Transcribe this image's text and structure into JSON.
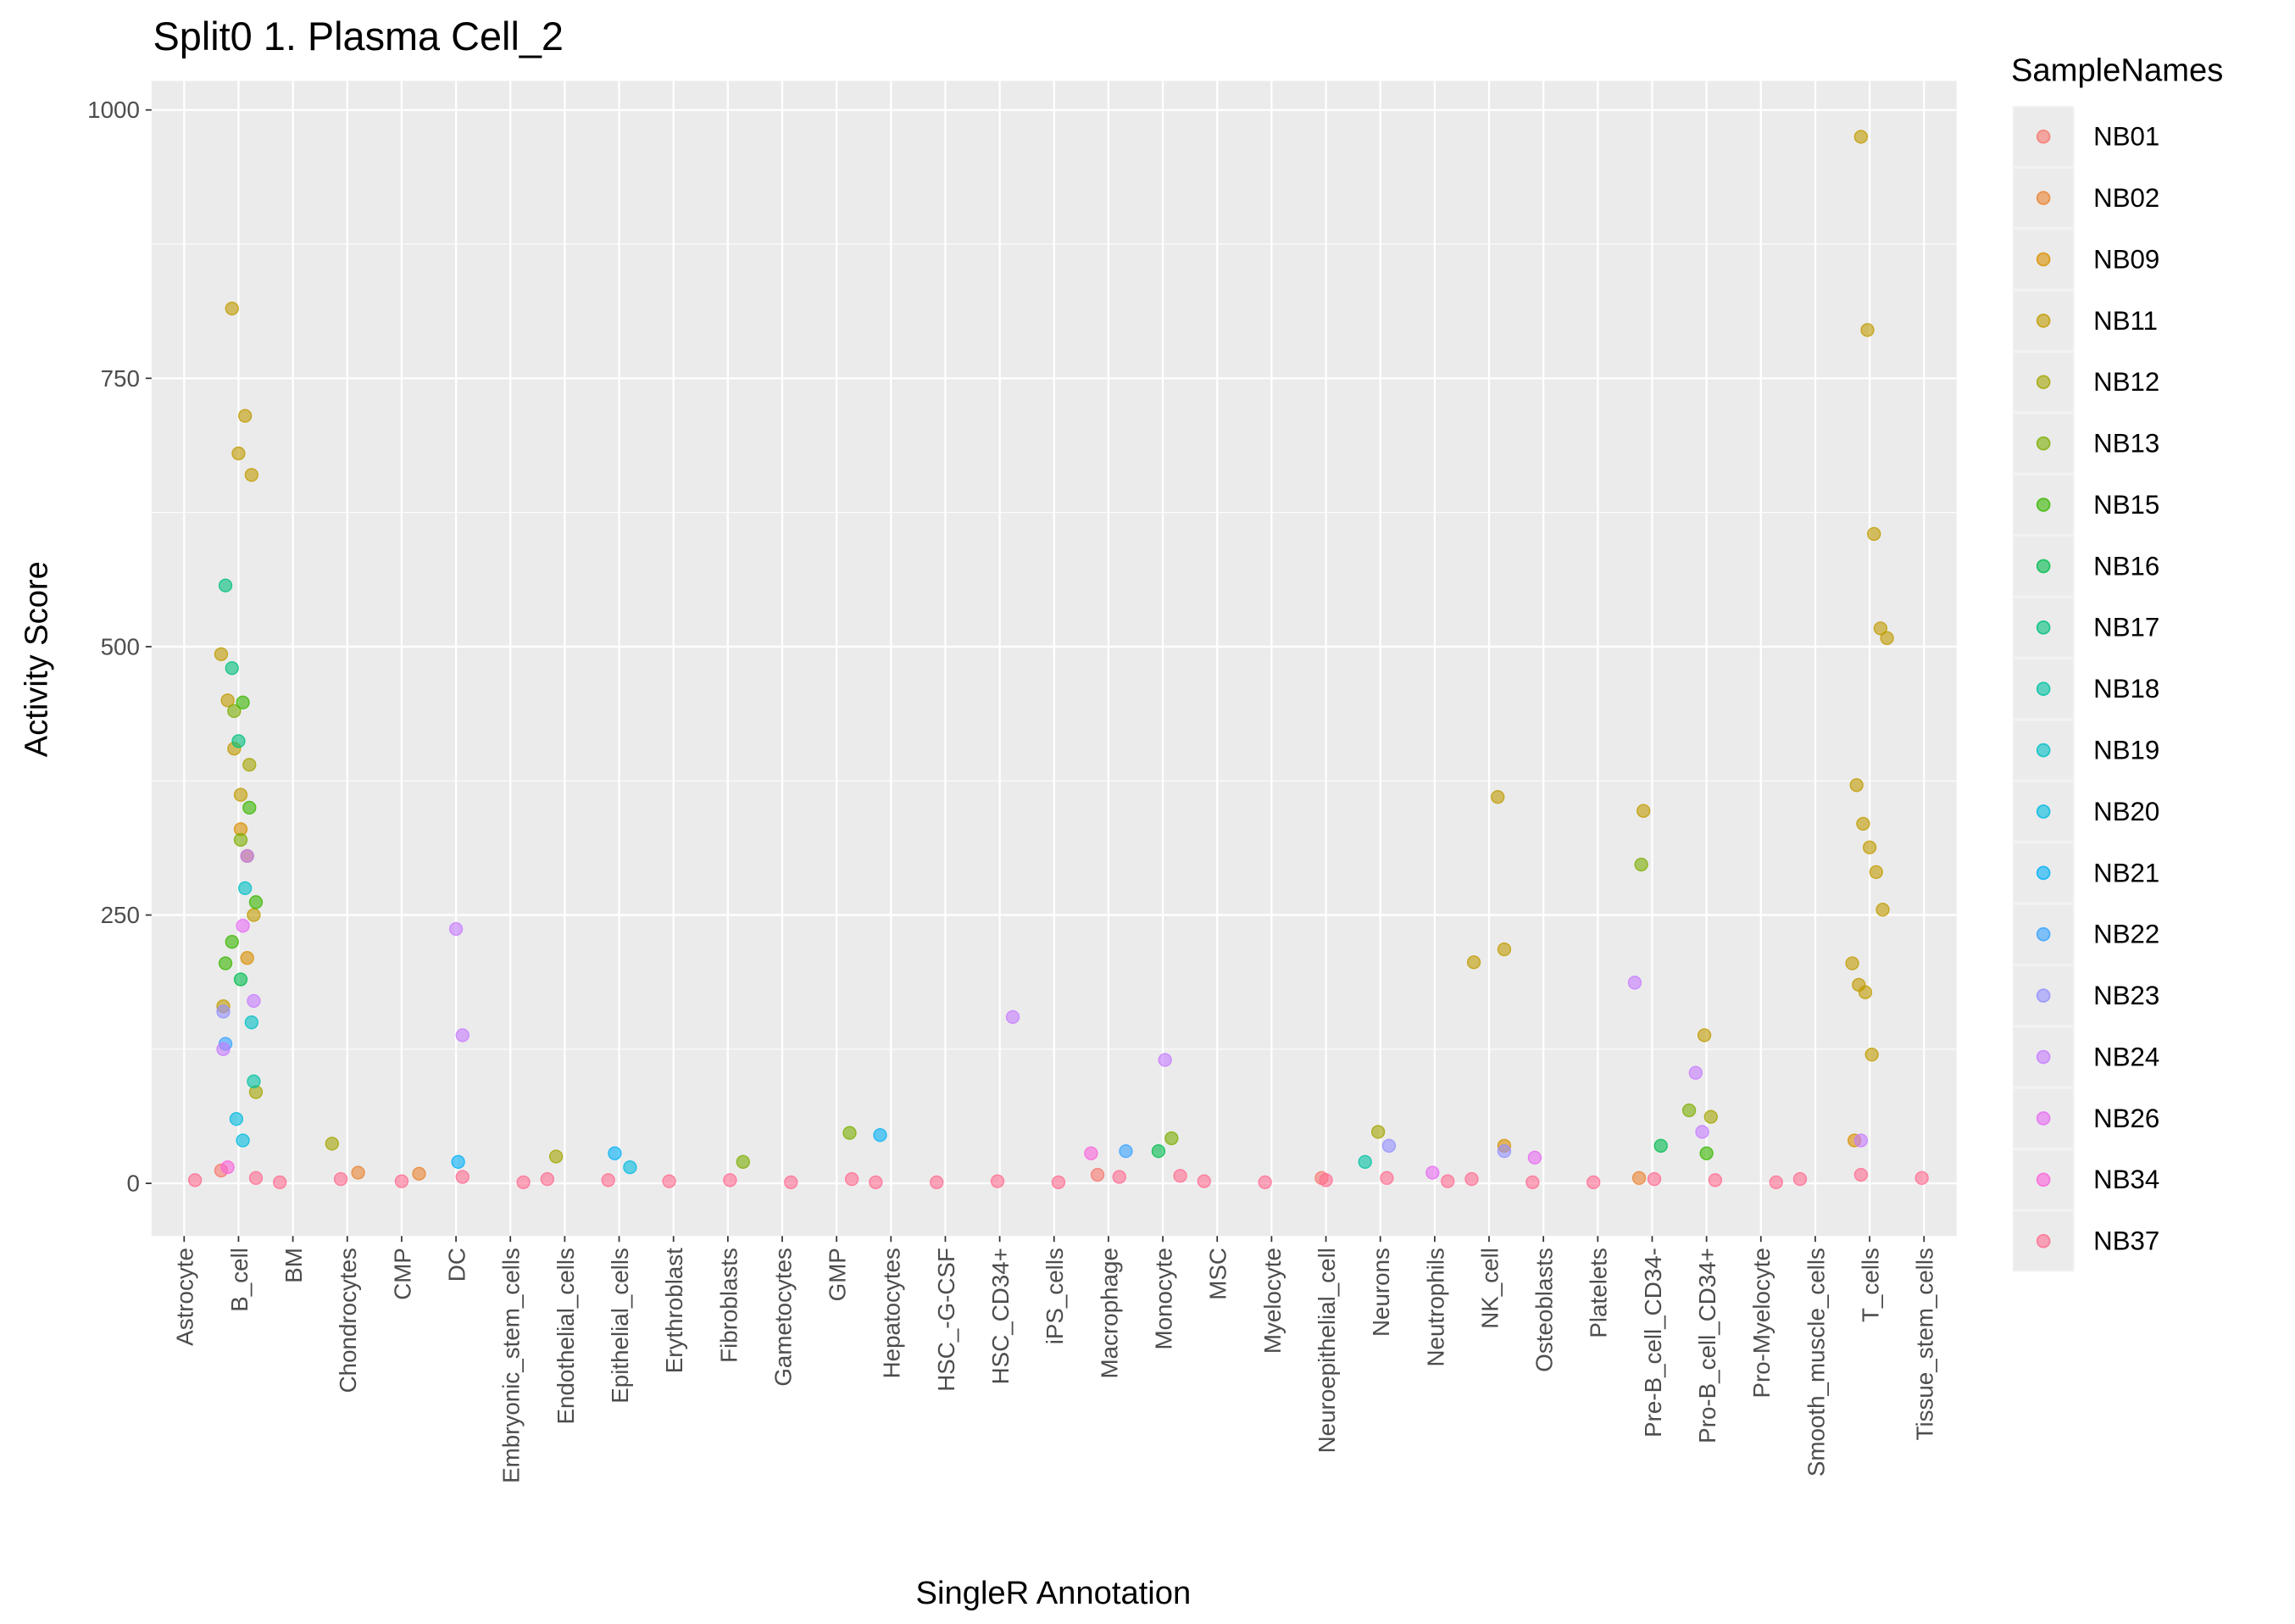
{
  "chart_data": {
    "type": "scatter",
    "title": "Split0 1. Plasma Cell_2",
    "x_label": "SingleR Annotation",
    "y_label": "Activity Score",
    "legend_title": "SampleNames",
    "legend_position": "right",
    "grid": true,
    "categories": [
      "Astrocyte",
      "B_cell",
      "BM",
      "Chondrocytes",
      "CMP",
      "DC",
      "Embryonic_stem_cells",
      "Endothelial_cells",
      "Epithelial_cells",
      "Erythroblast",
      "Fibroblasts",
      "Gametocytes",
      "GMP",
      "Hepatocytes",
      "HSC_-G-CSF",
      "HSC_CD34+",
      "iPS_cells",
      "Macrophage",
      "Monocyte",
      "MSC",
      "Myelocyte",
      "Neuroepithelial_cell",
      "Neurons",
      "Neutrophils",
      "NK_cell",
      "Osteoblasts",
      "Platelets",
      "Pre-B_cell_CD34-",
      "Pro-B_cell_CD34+",
      "Pro-Myelocyte",
      "Smooth_muscle_cells",
      "T_cells",
      "Tissue_stem_cells"
    ],
    "ylim": [
      -49,
      1027
    ],
    "yticks": [
      0,
      250,
      500,
      750,
      1000
    ],
    "series": [
      {
        "name": "NB01",
        "color": "#F8766D",
        "x": [
          "B_cell",
          "Macrophage",
          "Neuroepithelial_cell"
        ],
        "values": [
          12,
          8,
          5
        ]
      },
      {
        "name": "NB02",
        "color": "#EA8331",
        "x": [
          "Chondrocytes",
          "CMP",
          "Pre-B_cell_CD34-"
        ],
        "values": [
          10,
          9,
          5
        ]
      },
      {
        "name": "NB09",
        "color": "#D89000",
        "x": [
          "B_cell",
          "B_cell",
          "NK_cell",
          "T_cells"
        ],
        "values": [
          330,
          210,
          35,
          40
        ]
      },
      {
        "name": "NB11",
        "color": "#C09B00",
        "x": [
          "B_cell",
          "B_cell",
          "B_cell",
          "B_cell",
          "B_cell",
          "B_cell",
          "B_cell",
          "B_cell",
          "B_cell",
          "B_cell",
          "B_cell",
          "T_cells",
          "T_cells",
          "T_cells",
          "T_cells",
          "T_cells",
          "T_cells",
          "T_cells",
          "T_cells",
          "T_cells",
          "T_cells",
          "T_cells",
          "T_cells",
          "T_cells",
          "T_cells",
          "NK_cell",
          "NK_cell",
          "NK_cell",
          "Pre-B_cell_CD34-",
          "Pro-B_cell_CD34+"
        ],
        "values": [
          815,
          680,
          715,
          660,
          493,
          450,
          405,
          362,
          305,
          250,
          165,
          975,
          795,
          605,
          517,
          508,
          371,
          335,
          313,
          290,
          255,
          205,
          185,
          178,
          120,
          360,
          218,
          206,
          347,
          138
        ]
      },
      {
        "name": "NB12",
        "color": "#A3A500",
        "x": [
          "Chondrocytes",
          "Endothelial_cells",
          "Neurons",
          "Pro-B_cell_CD34+",
          "B_cell",
          "B_cell"
        ],
        "values": [
          37,
          25,
          48,
          62,
          390,
          85
        ]
      },
      {
        "name": "NB13",
        "color": "#7CAE00",
        "x": [
          "GMP",
          "Pro-B_cell_CD34+",
          "Pre-B_cell_CD34-",
          "B_cell",
          "B_cell",
          "Monocyte",
          "Fibroblasts"
        ],
        "values": [
          47,
          68,
          297,
          440,
          320,
          42,
          20
        ]
      },
      {
        "name": "NB15",
        "color": "#39B600",
        "x": [
          "B_cell",
          "B_cell",
          "B_cell",
          "B_cell",
          "B_cell",
          "Pro-B_cell_CD34+"
        ],
        "values": [
          448,
          350,
          262,
          205,
          225,
          28
        ]
      },
      {
        "name": "NB16",
        "color": "#00BB4E",
        "x": [
          "Monocyte",
          "B_cell",
          "Pre-B_cell_CD34-"
        ],
        "values": [
          30,
          190,
          35
        ]
      },
      {
        "name": "NB17",
        "color": "#00BF7D",
        "x": [
          "B_cell",
          "B_cell",
          "B_cell"
        ],
        "values": [
          557,
          480,
          412
        ]
      },
      {
        "name": "NB18",
        "color": "#00C1A3",
        "x": [
          "B_cell",
          "Neurons"
        ],
        "values": [
          95,
          20
        ]
      },
      {
        "name": "NB19",
        "color": "#00BFC4",
        "x": [
          "B_cell",
          "B_cell"
        ],
        "values": [
          275,
          150
        ]
      },
      {
        "name": "NB20",
        "color": "#00BAE0",
        "x": [
          "B_cell",
          "B_cell",
          "Epithelial_cells"
        ],
        "values": [
          60,
          40,
          15
        ]
      },
      {
        "name": "NB21",
        "color": "#00B0F6",
        "x": [
          "Hepatocytes",
          "Epithelial_cells",
          "DC"
        ],
        "values": [
          45,
          28,
          20
        ]
      },
      {
        "name": "NB22",
        "color": "#35A2FF",
        "x": [
          "Macrophage",
          "B_cell"
        ],
        "values": [
          30,
          130
        ]
      },
      {
        "name": "NB23",
        "color": "#9590FF",
        "x": [
          "Neurons",
          "NK_cell",
          "B_cell"
        ],
        "values": [
          35,
          30,
          160
        ]
      },
      {
        "name": "NB24",
        "color": "#C77CFF",
        "x": [
          "DC",
          "DC",
          "HSC_CD34+",
          "Pre-B_cell_CD34-",
          "Pro-B_cell_CD34+",
          "Pro-B_cell_CD34+",
          "Monocyte",
          "B_cell",
          "B_cell",
          "B_cell",
          "T_cells"
        ],
        "values": [
          237,
          138,
          155,
          187,
          103,
          48,
          115,
          305,
          170,
          125,
          40
        ]
      },
      {
        "name": "NB26",
        "color": "#E76BF3",
        "x": [
          "Osteoblasts",
          "Neutrophils",
          "B_cell"
        ],
        "values": [
          24,
          10,
          240
        ]
      },
      {
        "name": "NB34",
        "color": "#FA62DB",
        "x": [
          "Macrophage",
          "B_cell"
        ],
        "values": [
          28,
          15
        ]
      },
      {
        "name": "NB37",
        "color": "#FF6C91",
        "x": [
          "Astrocyte",
          "B_cell",
          "BM",
          "Chondrocytes",
          "CMP",
          "DC",
          "Embryonic_stem_cells",
          "Endothelial_cells",
          "Epithelial_cells",
          "Erythroblast",
          "Fibroblasts",
          "Gametocytes",
          "GMP",
          "Hepatocytes",
          "HSC_-G-CSF",
          "HSC_CD34+",
          "iPS_cells",
          "Macrophage",
          "Monocyte",
          "MSC",
          "Myelocyte",
          "Neuroepithelial_cell",
          "Neurons",
          "Neutrophils",
          "NK_cell",
          "Osteoblasts",
          "Platelets",
          "Pre-B_cell_CD34-",
          "Pro-B_cell_CD34+",
          "Pro-Myelocyte",
          "Smooth_muscle_cells",
          "T_cells",
          "Tissue_stem_cells"
        ],
        "values": [
          3,
          5,
          1,
          4,
          2,
          6,
          1,
          4,
          3,
          2,
          3,
          1,
          4,
          1,
          1,
          2,
          1,
          6,
          7,
          2,
          1,
          3,
          5,
          2,
          4,
          1,
          1,
          4,
          3,
          1,
          4,
          8,
          5
        ]
      }
    ]
  }
}
